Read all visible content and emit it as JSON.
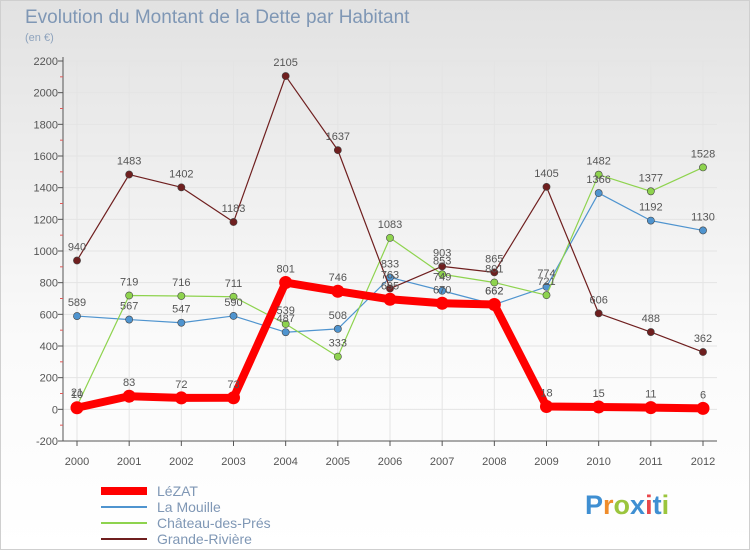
{
  "title": "Evolution du Montant de la Dette par Habitant",
  "unit_label": "(en €)",
  "logo": {
    "text": "Proxiti"
  },
  "colors": {
    "axis": "#555555",
    "grid": "#e4e4e4",
    "tick_mark": "#e05a5a",
    "label_text": "#555555",
    "legend_text": "#7f97b5",
    "logo_letters": [
      "#3f8fd2",
      "#ef8c2a",
      "#9bc53d",
      "#3f8fd2",
      "#e9474b",
      "#3f8fd2",
      "#9bc53d"
    ]
  },
  "chart_data": {
    "type": "line",
    "title": "Evolution du Montant de la Dette par Habitant",
    "ylabel": "(en €)",
    "xlabel": "",
    "x": [
      "2000",
      "2001",
      "2002",
      "2003",
      "2004",
      "2005",
      "2006",
      "2007",
      "2008",
      "2009",
      "2010",
      "2011",
      "2012"
    ],
    "ylim": [
      -200,
      2200
    ],
    "yticks": [
      -200,
      0,
      200,
      400,
      600,
      800,
      1000,
      1200,
      1400,
      1600,
      1800,
      2000,
      2200
    ],
    "grid": true,
    "legend_position": "bottom-left",
    "series": [
      {
        "name": "LéZAT",
        "color": "#ff0000",
        "highlight": true,
        "values": [
          10,
          83,
          72,
          73,
          801,
          746,
          695,
          670,
          662,
          18,
          15,
          11,
          6
        ],
        "labels": [
          "10",
          "83",
          "72",
          "73",
          "801",
          "746",
          "695",
          "670",
          "662",
          "18",
          "15",
          "11",
          "6"
        ]
      },
      {
        "name": "La Mouille",
        "color": "#4f94cf",
        "values": [
          589,
          567,
          547,
          590,
          487,
          508,
          833,
          749,
          662,
          774,
          1366,
          1192,
          1130
        ],
        "labels": [
          "589",
          "567",
          "547",
          "590",
          "487",
          "508",
          "833",
          "749",
          "662",
          "774",
          "1366",
          "1192",
          "1130"
        ]
      },
      {
        "name": "Château-des-Prés",
        "color": "#8ed34e",
        "values": [
          21,
          719,
          716,
          711,
          539,
          333,
          1083,
          853,
          801,
          721,
          1482,
          1377,
          1528
        ],
        "labels": [
          "21",
          "719",
          "716",
          "711",
          "539",
          "333",
          "1083",
          "853",
          "801",
          "721",
          "1482",
          "1377",
          "1528"
        ]
      },
      {
        "name": "Grande-Rivière",
        "color": "#6f1f1f",
        "values": [
          940,
          1483,
          1402,
          1183,
          2105,
          1637,
          763,
          903,
          865,
          1405,
          606,
          488,
          362
        ],
        "labels": [
          "940",
          "1483",
          "1402",
          "1183",
          "2105",
          "1637",
          "763",
          "903",
          "865",
          "1405",
          "606",
          "488",
          "362"
        ]
      }
    ]
  }
}
